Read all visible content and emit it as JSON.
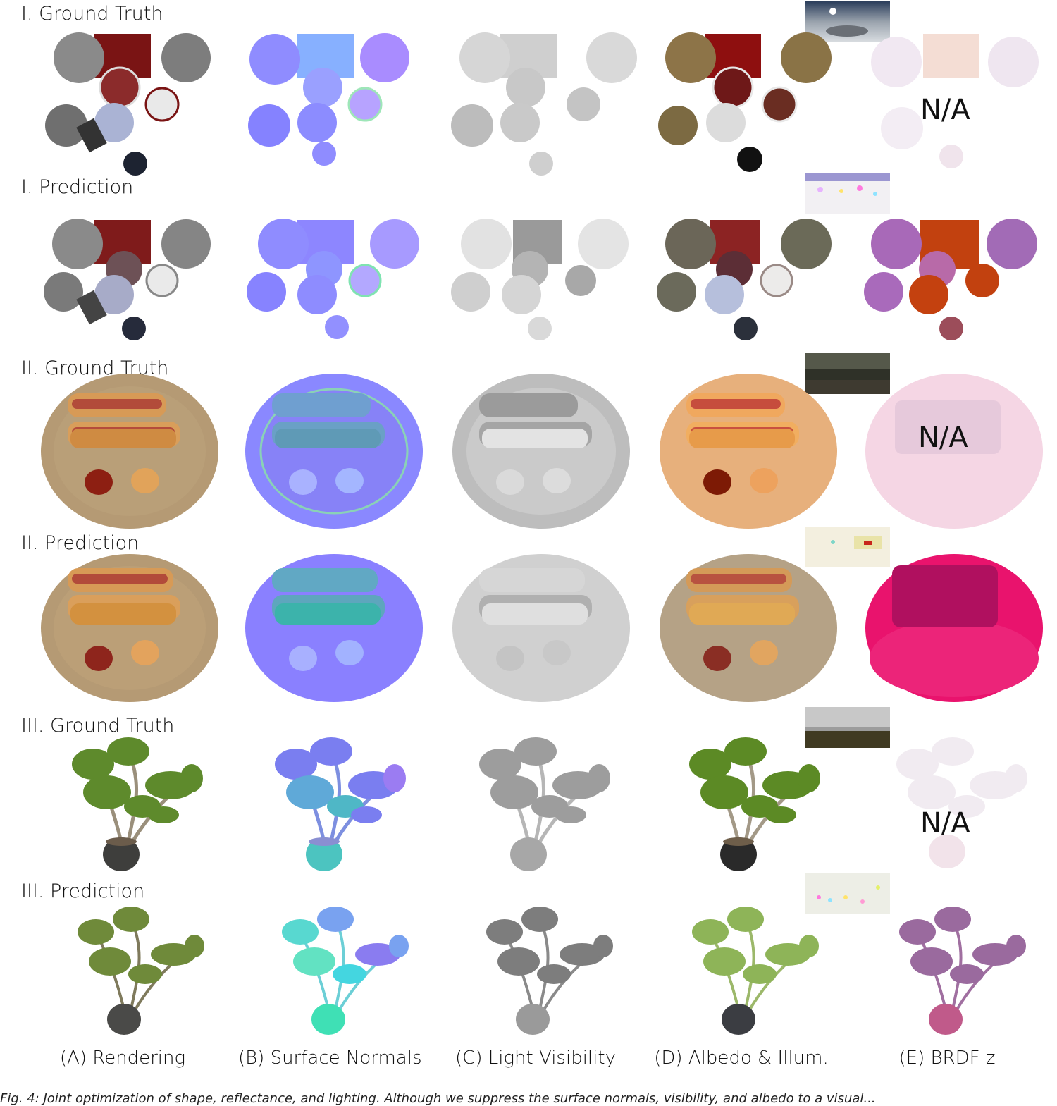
{
  "row_labels": {
    "r1": "I. Ground Truth",
    "r2": "I. Prediction",
    "r3": "II. Ground Truth",
    "r4": "II. Prediction",
    "r5": "III. Ground Truth",
    "r6": "III. Prediction"
  },
  "na_text": "N/A",
  "column_labels": {
    "a": "(A) Rendering",
    "b": "(B) Surface Normals",
    "c": "(C) Light Visibility",
    "d": "(D) Albedo & Illum.",
    "e": "(E) BRDF z"
  },
  "caption": "Fig. 4: Joint optimization of shape, reflectance, and lighting. Although we suppress the surface normals, visibility, and albedo to a visual..."
}
